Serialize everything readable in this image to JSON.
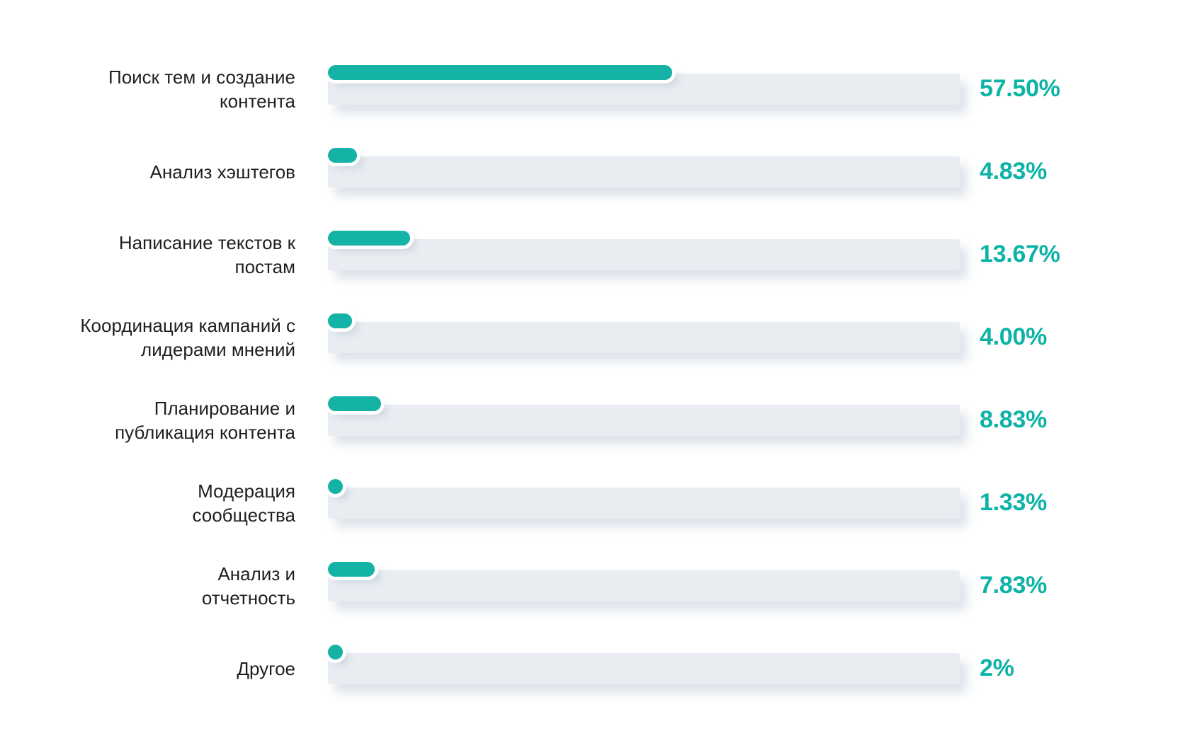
{
  "colors": {
    "bar_fill": "#15b2a6",
    "bar_track": "#e9edf2",
    "value_text": "#0db3a6",
    "label_text": "#1f1f1f",
    "background": "#ffffff"
  },
  "chart_data": {
    "type": "bar",
    "orientation": "horizontal",
    "title": "",
    "xlabel": "",
    "ylabel": "",
    "xlim": [
      0,
      100
    ],
    "grid": false,
    "legend": false,
    "categories": [
      "Поиск тем и создание\nконтента",
      "Анализ хэштегов",
      "Написание текстов к\nпостам",
      "Координация кампаний с\nлидерами мнений",
      "Планирование и\nпубликация контента",
      "Модерация\nсообщества",
      "Анализ и\nотчетность",
      "Другое"
    ],
    "values": [
      57.5,
      4.83,
      13.67,
      4.0,
      8.83,
      1.33,
      7.83,
      2
    ],
    "value_labels": [
      "57.50%",
      "4.83%",
      "13.67%",
      "4.00%",
      "8.83%",
      "1.33%",
      "7.83%",
      "2%"
    ]
  }
}
